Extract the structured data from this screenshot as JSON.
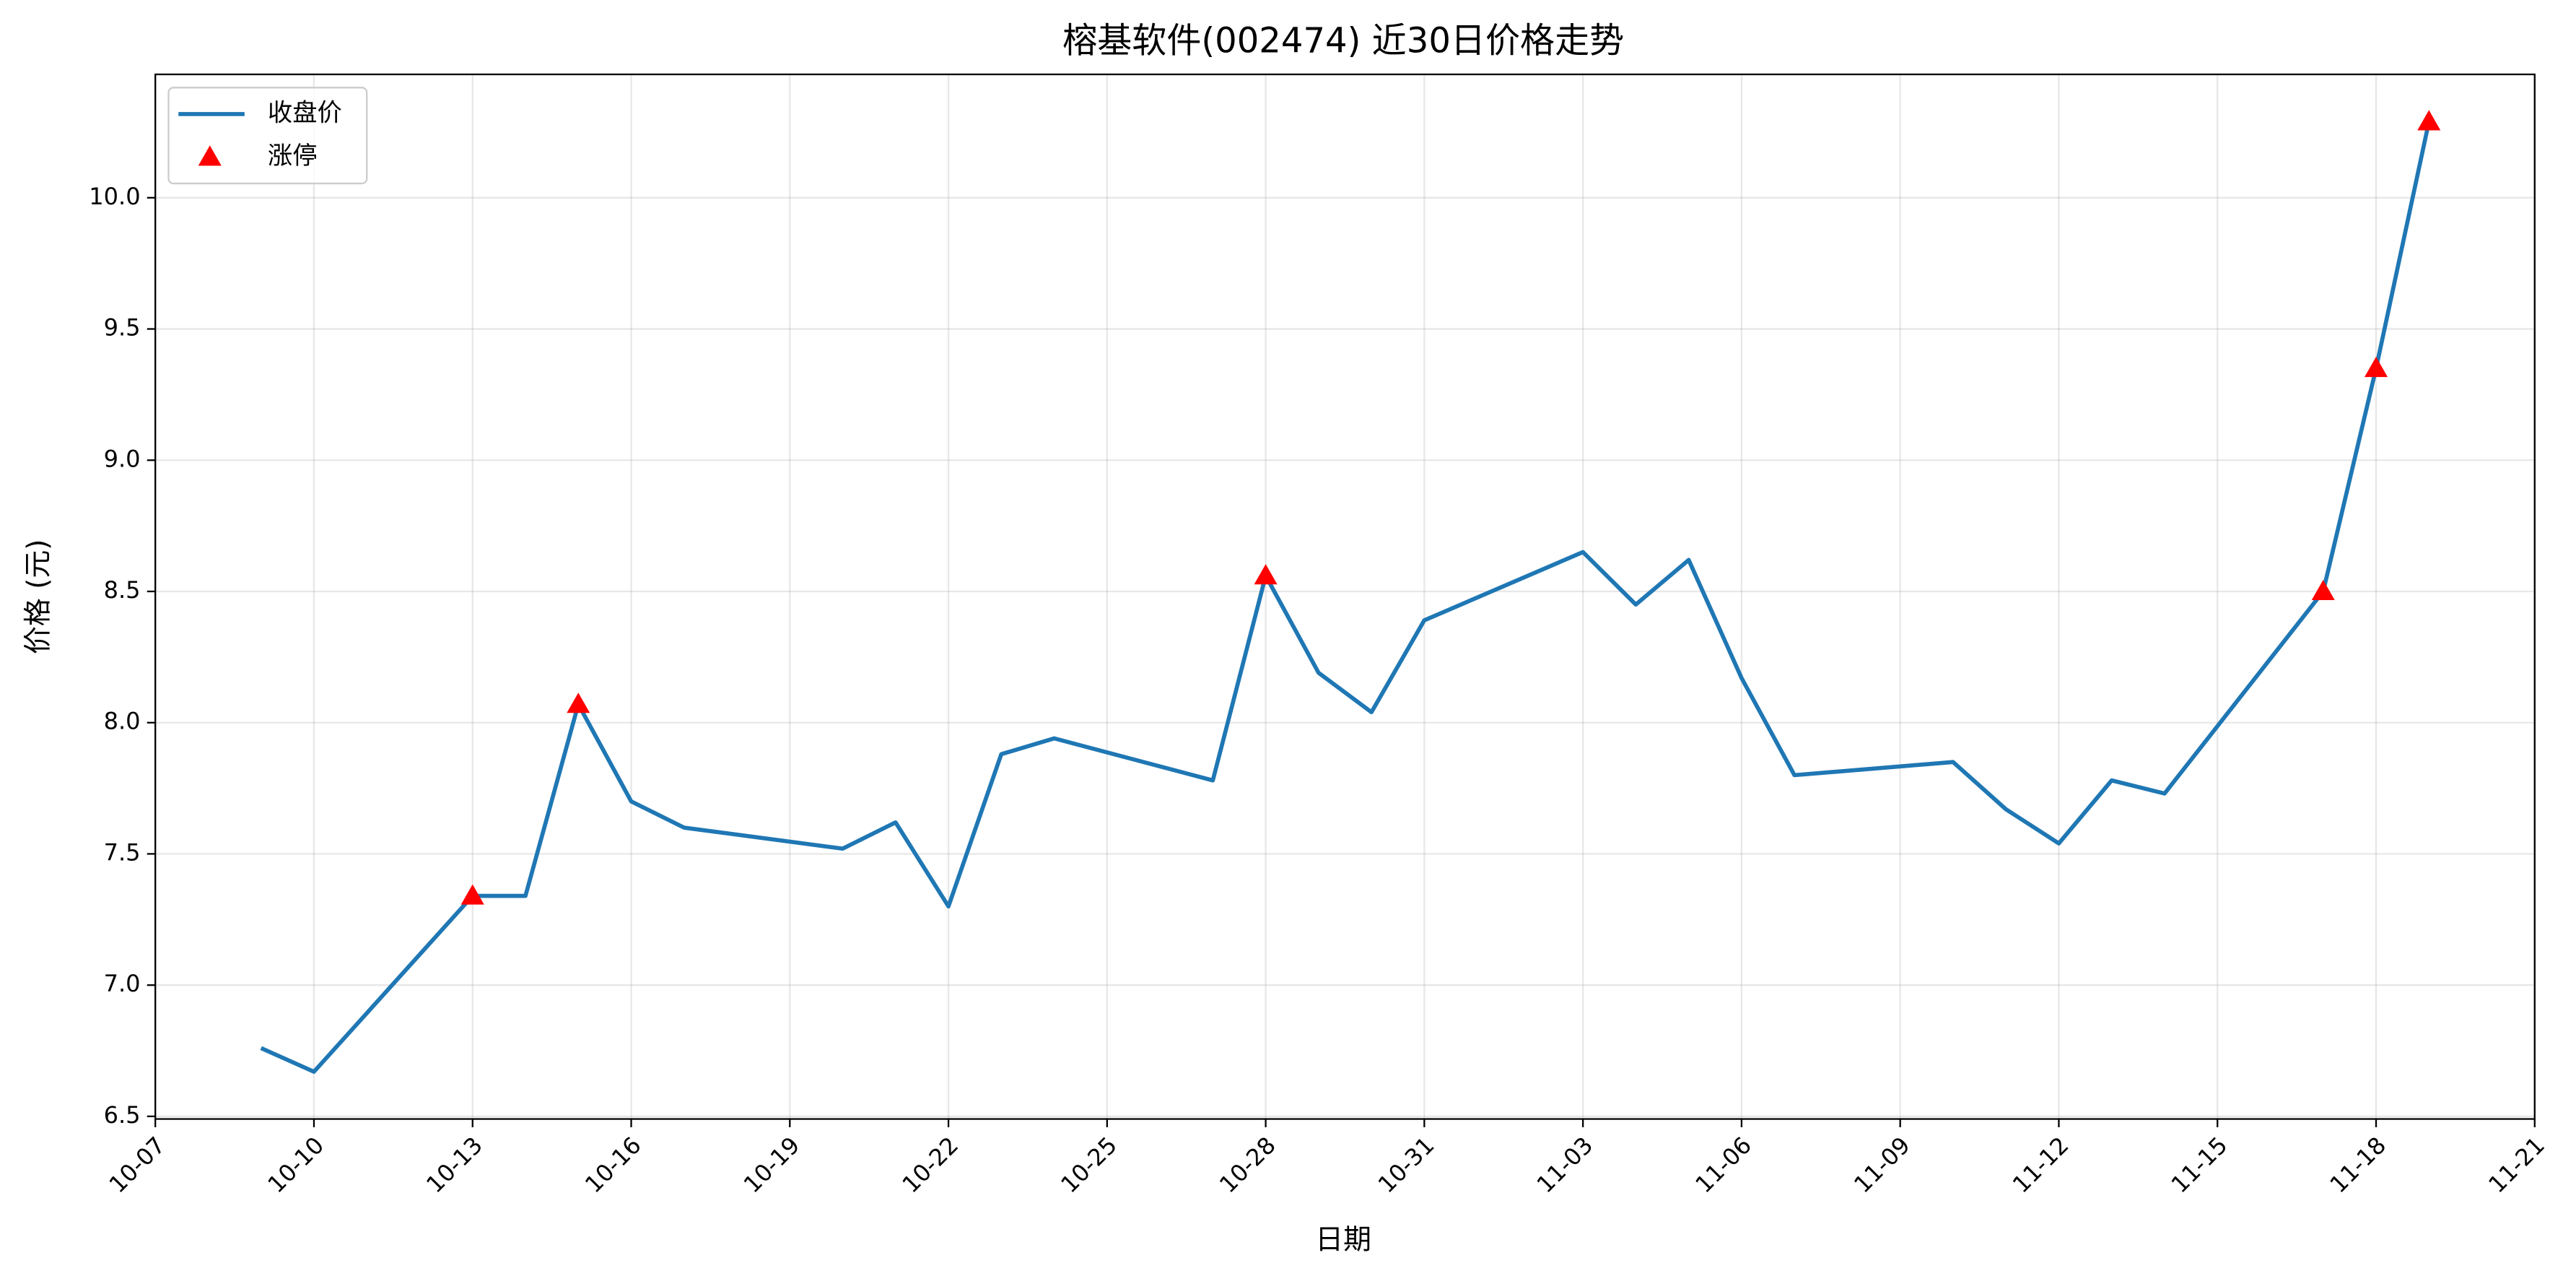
{
  "chart_data": {
    "type": "line",
    "title": "榕基软件(002474) 近30日价格走势",
    "xlabel": "日期",
    "ylabel": "价格 (元)",
    "series": [
      {
        "name": "收盘价",
        "type": "line",
        "color": "#1f77b4",
        "x": [
          "10-09",
          "10-10",
          "10-13",
          "10-14",
          "10-15",
          "10-16",
          "10-17",
          "10-20",
          "10-21",
          "10-22",
          "10-23",
          "10-24",
          "10-27",
          "10-28",
          "10-29",
          "10-30",
          "10-31",
          "11-03",
          "11-04",
          "11-05",
          "11-06",
          "11-07",
          "11-10",
          "11-11",
          "11-12",
          "11-13",
          "11-14",
          "11-17",
          "11-18",
          "11-19"
        ],
        "values": [
          6.76,
          6.67,
          7.34,
          7.34,
          8.07,
          7.7,
          7.6,
          7.52,
          7.62,
          7.3,
          7.88,
          7.94,
          7.78,
          8.56,
          8.19,
          8.04,
          8.39,
          8.65,
          8.45,
          8.62,
          8.17,
          7.8,
          7.85,
          7.67,
          7.54,
          7.78,
          7.73,
          8.5,
          9.35,
          10.29
        ]
      },
      {
        "name": "涨停",
        "type": "scatter",
        "marker": "triangle",
        "color": "#ff0000",
        "x": [
          "10-13",
          "10-15",
          "10-28",
          "11-17",
          "11-18",
          "11-19"
        ],
        "values": [
          7.34,
          8.07,
          8.56,
          8.5,
          9.35,
          10.29
        ]
      }
    ],
    "xlim": [
      "10-07",
      "11-21"
    ],
    "xticks": [
      "10-07",
      "10-10",
      "10-13",
      "10-16",
      "10-19",
      "10-22",
      "10-25",
      "10-28",
      "10-31",
      "11-03",
      "11-06",
      "11-09",
      "11-12",
      "11-15",
      "11-18",
      "11-21"
    ],
    "ylim": [
      6.49,
      10.47
    ],
    "yticks": [
      6.5,
      {
        "value": 7,
        "label": "7.0"
      },
      7.5,
      {
        "value": 8,
        "label": "8.0"
      },
      8.5,
      {
        "value": 9,
        "label": "9.0"
      },
      9.5,
      {
        "value": 10,
        "label": "10.0"
      }
    ],
    "grid": true,
    "legend": "upper left"
  }
}
